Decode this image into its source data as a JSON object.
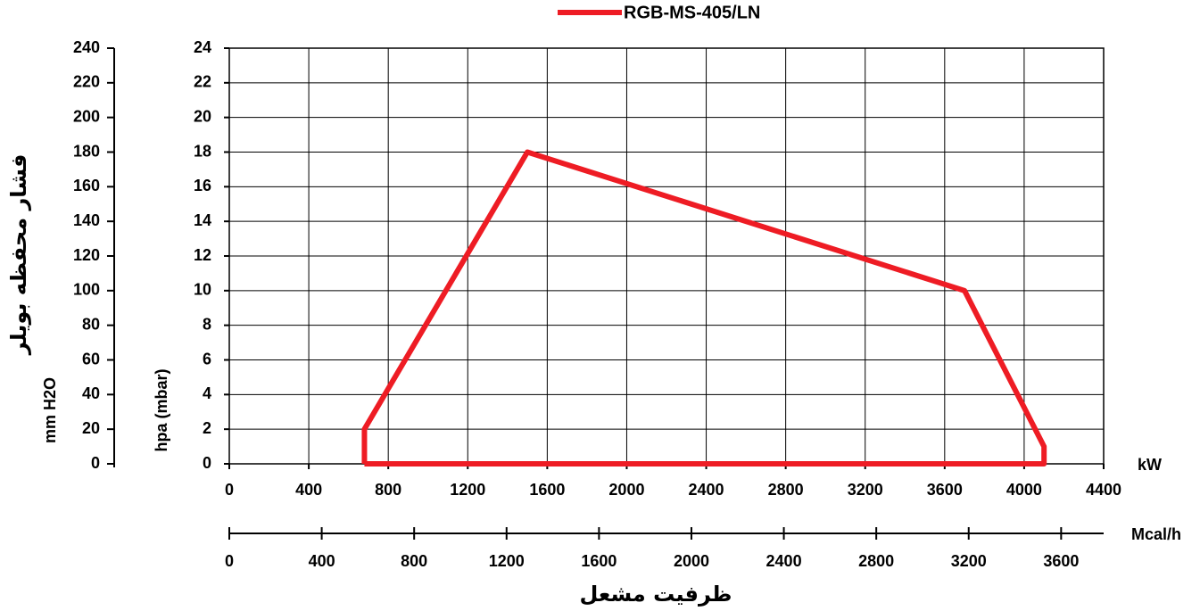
{
  "chart_data": {
    "type": "line",
    "x_title": "ظرفیت مشعل",
    "y_title": "فشار محفظه بویلر",
    "x_unit": "kW",
    "x2_unit": "Mcal/h",
    "y_unit": "hpa (mbar)",
    "y2_unit": "mm H2O",
    "xlim": [
      0,
      4400
    ],
    "xticks": [
      0,
      400,
      800,
      1200,
      1600,
      2000,
      2400,
      2800,
      3200,
      3600,
      4000,
      4400
    ],
    "x2lim": [
      0,
      3784
    ],
    "x2ticks": [
      0,
      400,
      800,
      1200,
      1600,
      2000,
      2400,
      2800,
      3200,
      3600
    ],
    "ylim": [
      0,
      24
    ],
    "yticks": [
      0,
      2,
      4,
      6,
      8,
      10,
      12,
      14,
      16,
      18,
      20,
      22,
      24
    ],
    "y2lim": [
      0,
      240
    ],
    "y2ticks": [
      0,
      20,
      40,
      60,
      80,
      100,
      120,
      140,
      160,
      180,
      200,
      220,
      240
    ],
    "grid": true,
    "legend": "top",
    "x": [
      680,
      680,
      1500,
      3700,
      4100,
      4100,
      680
    ],
    "series": [
      {
        "name": "RGB-MS-405/LN",
        "color": "#ee1c24",
        "values": [
          0,
          2,
          18,
          10,
          1,
          0,
          0
        ]
      }
    ]
  }
}
